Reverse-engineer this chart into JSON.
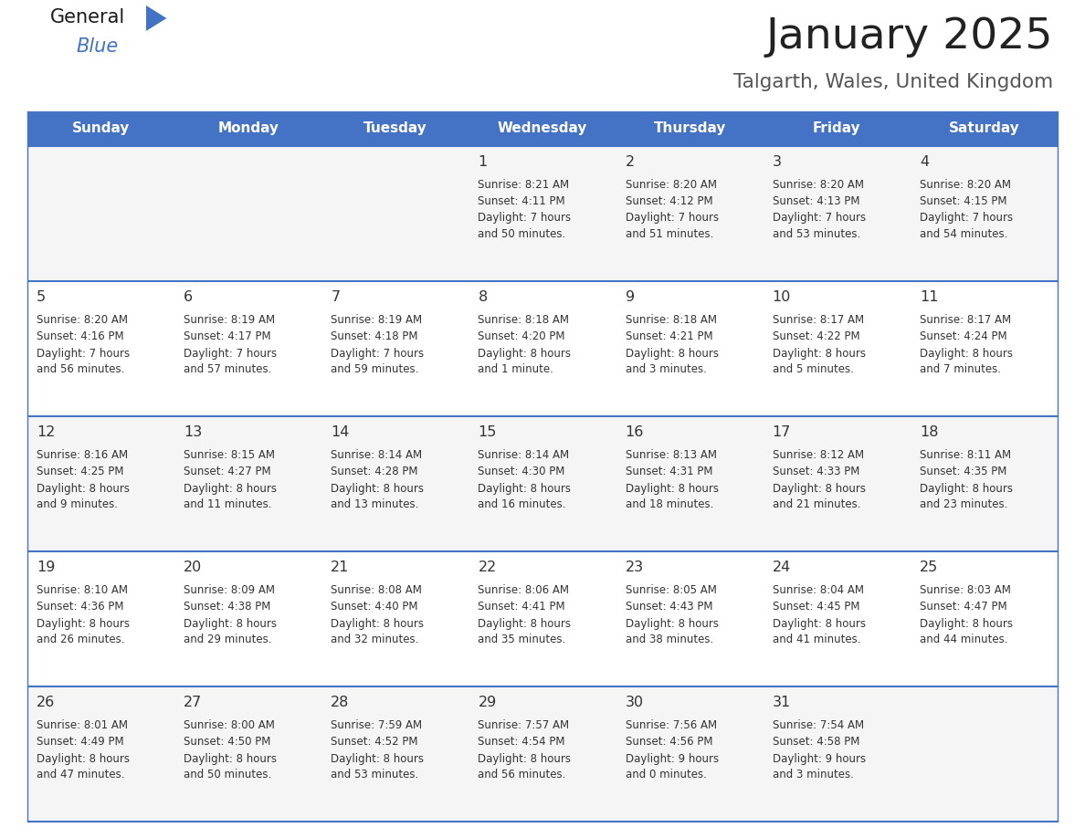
{
  "title": "January 2025",
  "subtitle": "Talgarth, Wales, United Kingdom",
  "header_color": "#4472C4",
  "header_text_color": "#FFFFFF",
  "days_of_week": [
    "Sunday",
    "Monday",
    "Tuesday",
    "Wednesday",
    "Thursday",
    "Friday",
    "Saturday"
  ],
  "title_color": "#222222",
  "subtitle_color": "#555555",
  "cell_line_color": "#4472C4",
  "row_colors": [
    "#F5F5F5",
    "#FFFFFF",
    "#F5F5F5",
    "#FFFFFF",
    "#F5F5F5"
  ],
  "text_color": "#333333",
  "calendar": [
    [
      {
        "day": "",
        "info": ""
      },
      {
        "day": "",
        "info": ""
      },
      {
        "day": "",
        "info": ""
      },
      {
        "day": "1",
        "info": "Sunrise: 8:21 AM\nSunset: 4:11 PM\nDaylight: 7 hours\nand 50 minutes."
      },
      {
        "day": "2",
        "info": "Sunrise: 8:20 AM\nSunset: 4:12 PM\nDaylight: 7 hours\nand 51 minutes."
      },
      {
        "day": "3",
        "info": "Sunrise: 8:20 AM\nSunset: 4:13 PM\nDaylight: 7 hours\nand 53 minutes."
      },
      {
        "day": "4",
        "info": "Sunrise: 8:20 AM\nSunset: 4:15 PM\nDaylight: 7 hours\nand 54 minutes."
      }
    ],
    [
      {
        "day": "5",
        "info": "Sunrise: 8:20 AM\nSunset: 4:16 PM\nDaylight: 7 hours\nand 56 minutes."
      },
      {
        "day": "6",
        "info": "Sunrise: 8:19 AM\nSunset: 4:17 PM\nDaylight: 7 hours\nand 57 minutes."
      },
      {
        "day": "7",
        "info": "Sunrise: 8:19 AM\nSunset: 4:18 PM\nDaylight: 7 hours\nand 59 minutes."
      },
      {
        "day": "8",
        "info": "Sunrise: 8:18 AM\nSunset: 4:20 PM\nDaylight: 8 hours\nand 1 minute."
      },
      {
        "day": "9",
        "info": "Sunrise: 8:18 AM\nSunset: 4:21 PM\nDaylight: 8 hours\nand 3 minutes."
      },
      {
        "day": "10",
        "info": "Sunrise: 8:17 AM\nSunset: 4:22 PM\nDaylight: 8 hours\nand 5 minutes."
      },
      {
        "day": "11",
        "info": "Sunrise: 8:17 AM\nSunset: 4:24 PM\nDaylight: 8 hours\nand 7 minutes."
      }
    ],
    [
      {
        "day": "12",
        "info": "Sunrise: 8:16 AM\nSunset: 4:25 PM\nDaylight: 8 hours\nand 9 minutes."
      },
      {
        "day": "13",
        "info": "Sunrise: 8:15 AM\nSunset: 4:27 PM\nDaylight: 8 hours\nand 11 minutes."
      },
      {
        "day": "14",
        "info": "Sunrise: 8:14 AM\nSunset: 4:28 PM\nDaylight: 8 hours\nand 13 minutes."
      },
      {
        "day": "15",
        "info": "Sunrise: 8:14 AM\nSunset: 4:30 PM\nDaylight: 8 hours\nand 16 minutes."
      },
      {
        "day": "16",
        "info": "Sunrise: 8:13 AM\nSunset: 4:31 PM\nDaylight: 8 hours\nand 18 minutes."
      },
      {
        "day": "17",
        "info": "Sunrise: 8:12 AM\nSunset: 4:33 PM\nDaylight: 8 hours\nand 21 minutes."
      },
      {
        "day": "18",
        "info": "Sunrise: 8:11 AM\nSunset: 4:35 PM\nDaylight: 8 hours\nand 23 minutes."
      }
    ],
    [
      {
        "day": "19",
        "info": "Sunrise: 8:10 AM\nSunset: 4:36 PM\nDaylight: 8 hours\nand 26 minutes."
      },
      {
        "day": "20",
        "info": "Sunrise: 8:09 AM\nSunset: 4:38 PM\nDaylight: 8 hours\nand 29 minutes."
      },
      {
        "day": "21",
        "info": "Sunrise: 8:08 AM\nSunset: 4:40 PM\nDaylight: 8 hours\nand 32 minutes."
      },
      {
        "day": "22",
        "info": "Sunrise: 8:06 AM\nSunset: 4:41 PM\nDaylight: 8 hours\nand 35 minutes."
      },
      {
        "day": "23",
        "info": "Sunrise: 8:05 AM\nSunset: 4:43 PM\nDaylight: 8 hours\nand 38 minutes."
      },
      {
        "day": "24",
        "info": "Sunrise: 8:04 AM\nSunset: 4:45 PM\nDaylight: 8 hours\nand 41 minutes."
      },
      {
        "day": "25",
        "info": "Sunrise: 8:03 AM\nSunset: 4:47 PM\nDaylight: 8 hours\nand 44 minutes."
      }
    ],
    [
      {
        "day": "26",
        "info": "Sunrise: 8:01 AM\nSunset: 4:49 PM\nDaylight: 8 hours\nand 47 minutes."
      },
      {
        "day": "27",
        "info": "Sunrise: 8:00 AM\nSunset: 4:50 PM\nDaylight: 8 hours\nand 50 minutes."
      },
      {
        "day": "28",
        "info": "Sunrise: 7:59 AM\nSunset: 4:52 PM\nDaylight: 8 hours\nand 53 minutes."
      },
      {
        "day": "29",
        "info": "Sunrise: 7:57 AM\nSunset: 4:54 PM\nDaylight: 8 hours\nand 56 minutes."
      },
      {
        "day": "30",
        "info": "Sunrise: 7:56 AM\nSunset: 4:56 PM\nDaylight: 9 hours\nand 0 minutes."
      },
      {
        "day": "31",
        "info": "Sunrise: 7:54 AM\nSunset: 4:58 PM\nDaylight: 9 hours\nand 3 minutes."
      },
      {
        "day": "",
        "info": ""
      }
    ]
  ]
}
